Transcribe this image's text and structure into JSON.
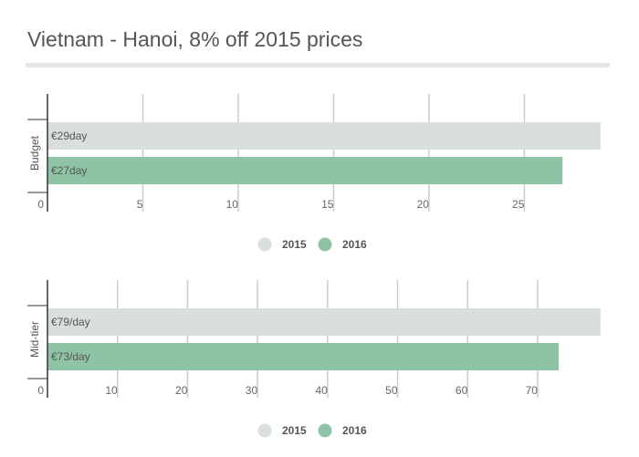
{
  "title": "Vietnam - Hanoi, 8% off 2015 prices",
  "colors": {
    "2015": "#d9dfdc",
    "2016": "#8ec3a6"
  },
  "chart_data": [
    {
      "type": "bar",
      "orientation": "horizontal",
      "categories": [
        "Budget"
      ],
      "series": [
        {
          "name": "2015",
          "values": [
            29
          ],
          "labels": [
            "€29day"
          ]
        },
        {
          "name": "2016",
          "values": [
            27
          ],
          "labels": [
            "€27day"
          ]
        }
      ],
      "xlim": [
        0,
        29
      ],
      "xticks": [
        0,
        5,
        10,
        15,
        20,
        25
      ],
      "grid": true,
      "legend": "bottom-center"
    },
    {
      "type": "bar",
      "orientation": "horizontal",
      "categories": [
        "Mid-tier"
      ],
      "series": [
        {
          "name": "2015",
          "values": [
            79
          ],
          "labels": [
            "€79/day"
          ]
        },
        {
          "name": "2016",
          "values": [
            73
          ],
          "labels": [
            "€73/day"
          ]
        }
      ],
      "xlim": [
        0,
        79
      ],
      "xticks": [
        0,
        10,
        20,
        30,
        40,
        50,
        60,
        70
      ],
      "grid": true,
      "legend": "bottom-center"
    }
  ]
}
